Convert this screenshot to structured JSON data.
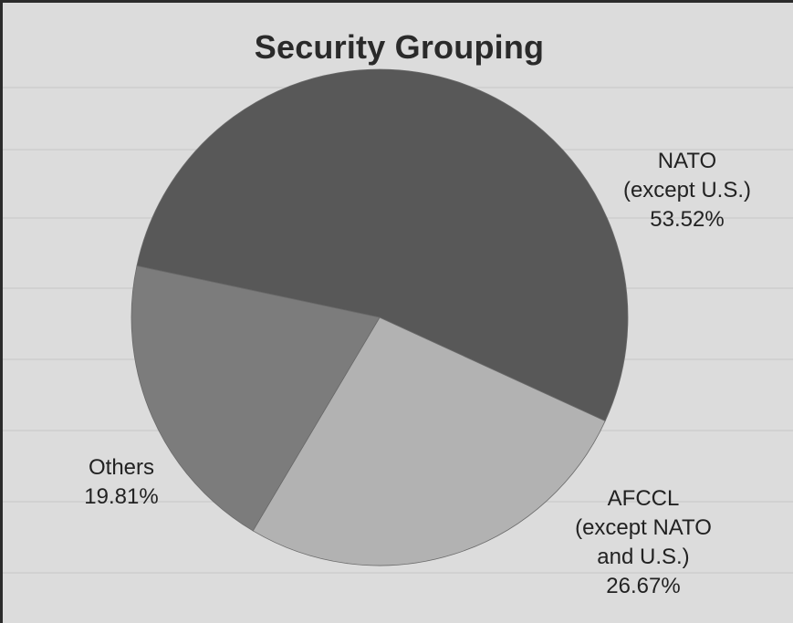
{
  "chart_data": {
    "type": "pie",
    "title": "Security Grouping",
    "slices": [
      {
        "lines": [
          "NATO",
          "(except U.S.)"
        ],
        "percent_label": "53.52%",
        "value": 53.52,
        "color": "#585858"
      },
      {
        "lines": [
          "AFCCL",
          "(except NATO",
          "and U.S.)"
        ],
        "percent_label": "26.67%",
        "value": 26.67,
        "color": "#b2b2b2"
      },
      {
        "lines": [
          "Others"
        ],
        "percent_label": "19.81%",
        "value": 19.81,
        "color": "#7c7c7c"
      }
    ]
  }
}
